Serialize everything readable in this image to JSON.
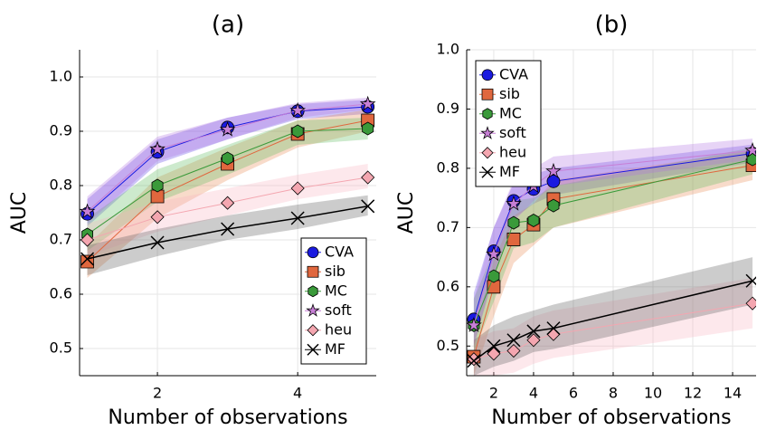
{
  "chart_data": [
    {
      "type": "line",
      "title": "(a)",
      "xlabel": "Number of observations",
      "ylabel": "AUC",
      "xlim": [
        0.89,
        5.12
      ],
      "ylim": [
        0.45,
        1.05
      ],
      "xticks": [
        2,
        4
      ],
      "yticks": [
        0.5,
        0.6,
        0.7,
        0.8,
        0.9,
        {
          "value": 1.0,
          "label": "1.0"
        }
      ],
      "grid": true,
      "legend": "lower right",
      "x": [
        1,
        2,
        3,
        4,
        5
      ],
      "series": [
        {
          "name": "CVA",
          "color": "#1a1ae0",
          "band_color": "#5a3ce6",
          "marker": "circle",
          "values": [
            0.748,
            0.862,
            0.907,
            0.937,
            0.945
          ],
          "lower": [
            0.725,
            0.84,
            0.885,
            0.922,
            0.932
          ],
          "upper": [
            0.775,
            0.885,
            0.925,
            0.95,
            0.958
          ]
        },
        {
          "name": "sib",
          "color": "#e0673e",
          "band_color": "#e8874e",
          "marker": "square",
          "values": [
            0.66,
            0.78,
            0.84,
            0.895,
            0.92
          ],
          "lower": [
            0.63,
            0.74,
            0.81,
            0.87,
            0.9
          ],
          "upper": [
            0.69,
            0.815,
            0.87,
            0.92,
            0.94
          ]
        },
        {
          "name": "MC",
          "color": "#3a9a3a",
          "band_color": "#5ab85a",
          "marker": "hexagon",
          "values": [
            0.71,
            0.8,
            0.85,
            0.9,
            0.905
          ],
          "lower": [
            0.68,
            0.77,
            0.82,
            0.875,
            0.885
          ],
          "upper": [
            0.74,
            0.83,
            0.875,
            0.92,
            0.925
          ]
        },
        {
          "name": "soft",
          "color": "#c77fd6",
          "band_color": "#b070e0",
          "marker": "star",
          "values": [
            0.752,
            0.867,
            0.903,
            0.938,
            0.95
          ],
          "lower": [
            0.73,
            0.845,
            0.885,
            0.925,
            0.94
          ],
          "upper": [
            0.78,
            0.89,
            0.925,
            0.952,
            0.962
          ]
        },
        {
          "name": "heu",
          "color": "#f4a6b0",
          "band_color": "#f8b4c0",
          "marker": "diamond",
          "values": [
            0.7,
            0.742,
            0.768,
            0.795,
            0.815
          ],
          "lower": [
            0.67,
            0.715,
            0.745,
            0.775,
            0.795
          ],
          "upper": [
            0.73,
            0.77,
            0.795,
            0.82,
            0.84
          ]
        },
        {
          "name": "MF",
          "color": "#000000",
          "band_color": "#555555",
          "marker": "cross",
          "values": [
            0.665,
            0.695,
            0.72,
            0.74,
            0.762
          ],
          "lower": [
            0.635,
            0.67,
            0.7,
            0.72,
            0.745
          ],
          "upper": [
            0.69,
            0.72,
            0.745,
            0.765,
            0.782
          ]
        }
      ]
    },
    {
      "type": "line",
      "title": "(b)",
      "xlabel": "Number of observations",
      "ylabel": "AUC",
      "xlim": [
        0.64,
        15.18
      ],
      "ylim": [
        0.45,
        1.0
      ],
      "xticks": [
        2,
        4,
        6,
        8,
        10,
        12,
        14
      ],
      "yticks": [
        0.5,
        0.6,
        0.7,
        0.8,
        0.9,
        {
          "value": 1.0,
          "label": "1.0"
        }
      ],
      "grid": true,
      "legend": "upper left",
      "x": [
        1,
        2,
        3,
        4,
        5,
        15
      ],
      "series": [
        {
          "name": "CVA",
          "color": "#1a1ae0",
          "band_color": "#5a3ce6",
          "marker": "circle",
          "values": [
            0.545,
            0.66,
            0.745,
            0.765,
            0.778,
            0.825
          ],
          "lower": [
            0.5,
            0.62,
            0.715,
            0.74,
            0.755,
            0.81
          ],
          "upper": [
            0.59,
            0.7,
            0.775,
            0.79,
            0.8,
            0.84
          ]
        },
        {
          "name": "sib",
          "color": "#e0673e",
          "band_color": "#e8874e",
          "marker": "square",
          "values": [
            0.482,
            0.6,
            0.68,
            0.705,
            0.748,
            0.805
          ],
          "lower": [
            0.45,
            0.55,
            0.64,
            0.67,
            0.7,
            0.78
          ],
          "upper": [
            0.52,
            0.645,
            0.72,
            0.74,
            0.78,
            0.83
          ]
        },
        {
          "name": "MC",
          "color": "#3a9a3a",
          "band_color": "#5ab85a",
          "marker": "hexagon",
          "values": [
            0.535,
            0.618,
            0.708,
            0.712,
            0.737,
            0.815
          ],
          "lower": [
            0.49,
            0.575,
            0.665,
            0.675,
            0.7,
            0.79
          ],
          "upper": [
            0.58,
            0.66,
            0.745,
            0.75,
            0.77,
            0.835
          ]
        },
        {
          "name": "soft",
          "color": "#c77fd6",
          "band_color": "#b070e0",
          "marker": "star",
          "values": [
            0.535,
            0.655,
            0.74,
            0.77,
            0.795,
            0.83
          ],
          "lower": [
            0.5,
            0.62,
            0.71,
            0.745,
            0.77,
            0.815
          ],
          "upper": [
            0.58,
            0.7,
            0.78,
            0.8,
            0.82,
            0.85
          ]
        },
        {
          "name": "heu",
          "color": "#f4a6b0",
          "band_color": "#f8b4c0",
          "marker": "diamond",
          "values": [
            0.478,
            0.487,
            0.492,
            0.51,
            0.52,
            0.572
          ],
          "lower": [
            0.45,
            0.45,
            0.455,
            0.47,
            0.48,
            0.53
          ],
          "upper": [
            0.51,
            0.525,
            0.53,
            0.55,
            0.56,
            0.615
          ]
        },
        {
          "name": "MF",
          "color": "#000000",
          "band_color": "#555555",
          "marker": "cross",
          "values": [
            0.475,
            0.5,
            0.51,
            0.525,
            0.53,
            0.61
          ],
          "lower": [
            0.45,
            0.465,
            0.475,
            0.49,
            0.495,
            0.57
          ],
          "upper": [
            0.51,
            0.535,
            0.55,
            0.56,
            0.57,
            0.65
          ]
        }
      ]
    }
  ]
}
